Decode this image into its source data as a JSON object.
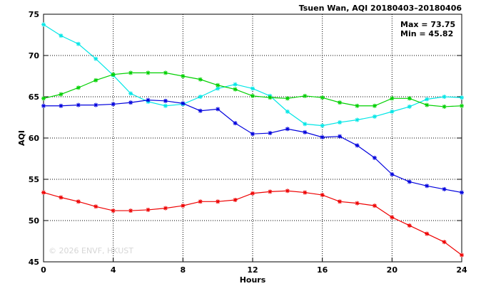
{
  "chart_data": {
    "type": "line",
    "title": "Tsuen Wan, AQI 20180403–20180406",
    "xlabel": "Hours",
    "ylabel": "AQI",
    "xlim": [
      0,
      24
    ],
    "ylim": [
      45,
      75
    ],
    "xticks": [
      0,
      4,
      8,
      12,
      16,
      20,
      24
    ],
    "yticks": [
      45,
      50,
      55,
      60,
      65,
      70,
      75
    ],
    "grid": true,
    "stats": {
      "max": "Max = 73.75",
      "min": "Min = 45.82"
    },
    "watermark": "© 2026  ENVF, HKUST",
    "x": [
      0,
      1,
      2,
      3,
      4,
      5,
      6,
      7,
      8,
      9,
      10,
      11,
      12,
      13,
      14,
      15,
      16,
      17,
      18,
      19,
      20,
      21,
      22,
      23,
      24
    ],
    "series": [
      {
        "color": "#00e6e6",
        "values": [
          73.75,
          72.4,
          71.4,
          69.6,
          67.6,
          65.4,
          64.4,
          63.9,
          64.1,
          65.0,
          66.0,
          66.5,
          66.0,
          65.1,
          63.2,
          61.7,
          61.5,
          61.9,
          62.2,
          62.6,
          63.2,
          63.8,
          64.7,
          65.0,
          64.9
        ]
      },
      {
        "color": "#00d000",
        "values": [
          64.8,
          65.3,
          66.1,
          67.0,
          67.7,
          67.9,
          67.9,
          67.9,
          67.5,
          67.1,
          66.4,
          65.9,
          65.1,
          64.9,
          64.8,
          65.1,
          64.9,
          64.3,
          63.9,
          63.9,
          64.8,
          64.8,
          64.0,
          63.8,
          63.9
        ]
      },
      {
        "color": "#0000dd",
        "values": [
          63.9,
          63.9,
          64.0,
          64.0,
          64.1,
          64.3,
          64.6,
          64.5,
          64.2,
          63.3,
          63.5,
          61.8,
          60.5,
          60.6,
          61.1,
          60.7,
          60.1,
          60.2,
          59.1,
          57.6,
          55.6,
          54.7,
          54.2,
          53.8,
          53.4
        ]
      },
      {
        "color": "#ee0000",
        "values": [
          53.4,
          52.8,
          52.3,
          51.7,
          51.2,
          51.2,
          51.3,
          51.5,
          51.8,
          52.3,
          52.3,
          52.5,
          53.3,
          53.5,
          53.6,
          53.4,
          53.1,
          52.3,
          52.1,
          51.8,
          50.4,
          49.4,
          48.4,
          47.4,
          45.82
        ]
      }
    ]
  }
}
